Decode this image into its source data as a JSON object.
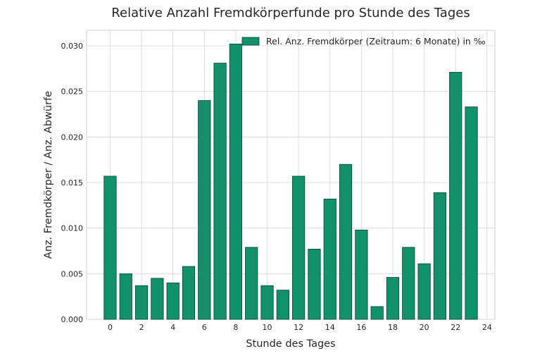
{
  "chart_data": {
    "type": "bar",
    "title": "Relative Anzahl Fremdkörperfunde pro Stunde des Tages",
    "xlabel": "Stunde des Tages",
    "ylabel": "Anz. Fremdkörper / Anz. Abwürfe",
    "x": [
      0,
      1,
      2,
      3,
      4,
      5,
      6,
      7,
      8,
      9,
      10,
      11,
      12,
      13,
      14,
      15,
      16,
      17,
      18,
      19,
      20,
      21,
      22,
      23
    ],
    "series": [
      {
        "name": "Rel. Anz. Fremdkörper (Zeitraum: 6 Monate) in ‰",
        "values": [
          0.0157,
          0.005,
          0.0037,
          0.0045,
          0.004,
          0.0058,
          0.024,
          0.0281,
          0.0302,
          0.0079,
          0.0037,
          0.0032,
          0.0157,
          0.0077,
          0.0132,
          0.017,
          0.0098,
          0.0014,
          0.0046,
          0.0079,
          0.0061,
          0.0139,
          0.0271,
          0.0233
        ]
      }
    ],
    "xlim": [
      -1.5,
      24.5
    ],
    "ylim": [
      0,
      0.0317
    ],
    "xticks": [
      "0",
      "2",
      "4",
      "6",
      "8",
      "10",
      "12",
      "14",
      "16",
      "18",
      "20",
      "22",
      "24"
    ],
    "yticks": [
      "0.000",
      "0.005",
      "0.010",
      "0.015",
      "0.020",
      "0.025",
      "0.030"
    ],
    "grid": true,
    "legend_position": "top-right",
    "colors": {
      "bar_fill": "#10916a",
      "bar_edge": "#0f3f2e",
      "plot_background": "#ffffff",
      "figure_background": "#ffffff",
      "grid": "#d6d6d6",
      "frame": "#cfcfcf"
    }
  }
}
